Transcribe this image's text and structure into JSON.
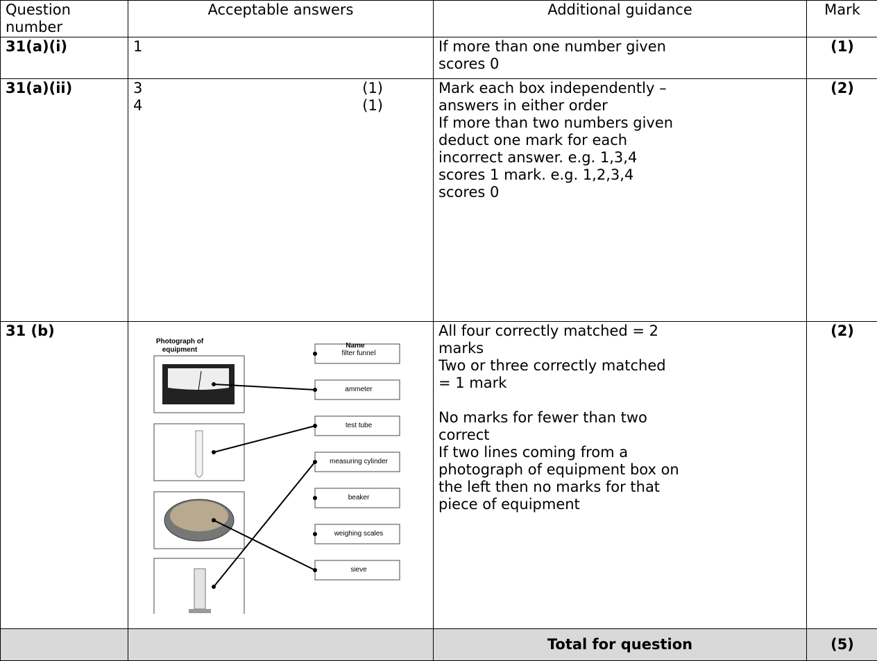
{
  "header": {
    "question_number": "Question number",
    "acceptable_answers": "Acceptable answers",
    "additional_guidance": "Additional guidance",
    "mark": "Mark"
  },
  "rows": [
    {
      "question": "31(a)(i)",
      "answers": [
        {
          "text": "1"
        }
      ],
      "guidance": [
        "If more than one number given",
        "scores 0"
      ],
      "mark": "(1)"
    },
    {
      "question": "31(a)(ii)",
      "answers": [
        {
          "text": "3",
          "mark": "(1)"
        },
        {
          "text": "4",
          "mark": "(1)"
        }
      ],
      "guidance": [
        "Mark each box independently –",
        "answers in either order",
        "If more than two numbers given",
        "deduct one mark for each",
        "incorrect answer. e.g. 1,3,4",
        "scores 1 mark. e.g. 1,2,3,4",
        "scores 0"
      ],
      "mark": "(2)"
    },
    {
      "question": "31 (b)",
      "diagram": {
        "photo_heading": "Photograph of equipment",
        "name_heading": "Name",
        "names": [
          "filter funnel",
          "ammeter",
          "test tube",
          "measuring cylinder",
          "beaker",
          "weighing scales",
          "sieve"
        ]
      },
      "guidance": [
        "All four correctly matched = 2",
        "marks",
        "Two or three correctly matched",
        "= 1 mark",
        "No marks for fewer than two",
        "correct",
        "If two lines coming from a",
        "photograph of equipment box on",
        "the left then no marks for that",
        "piece of equipment"
      ],
      "mark": "(2)"
    }
  ],
  "total": {
    "label": "Total for question",
    "mark": "(5)"
  }
}
